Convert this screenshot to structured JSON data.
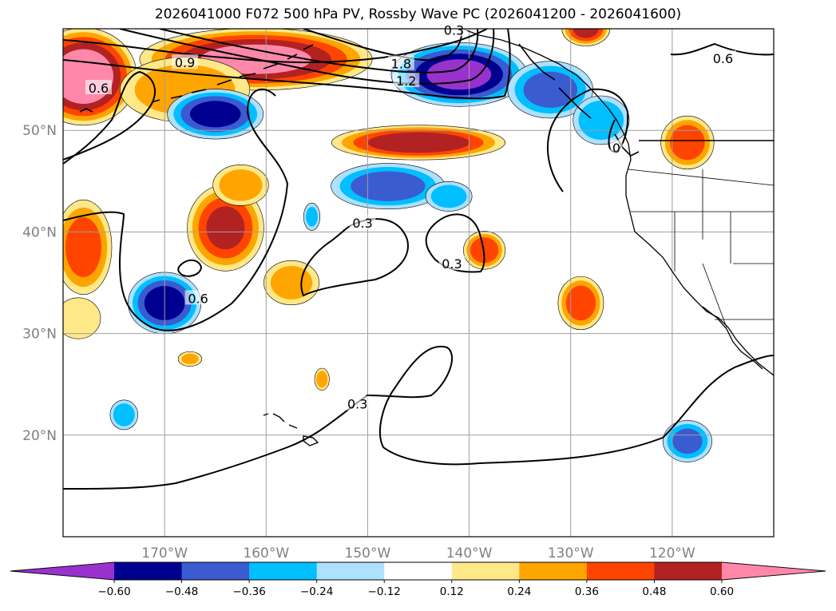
{
  "title": "2026041000 F072 500 hPa PV, Rossby Wave PC (2026041200 - 2026041600)",
  "map": {
    "lon_range": [
      -180,
      -110
    ],
    "lat_range": [
      10,
      60
    ],
    "lon_ticks": [
      {
        "value": -170,
        "label": "170°W"
      },
      {
        "value": -160,
        "label": "160°W"
      },
      {
        "value": -150,
        "label": "150°W"
      },
      {
        "value": -140,
        "label": "140°W"
      },
      {
        "value": -130,
        "label": "130°W"
      },
      {
        "value": -120,
        "label": "120°W"
      }
    ],
    "lat_ticks": [
      {
        "value": 20,
        "label": "20°N"
      },
      {
        "value": 30,
        "label": "30°N"
      },
      {
        "value": 40,
        "label": "40°N"
      },
      {
        "value": 50,
        "label": "50°N"
      }
    ],
    "gridlines": true
  },
  "contour_labels": [
    {
      "text": "0.9",
      "lon": -168,
      "lat": 56.6
    },
    {
      "text": "0.6",
      "lon": -176.5,
      "lat": 54.1
    },
    {
      "text": "1.8",
      "lon": -146.7,
      "lat": 56.5
    },
    {
      "text": "1.2",
      "lon": -146.2,
      "lat": 54.8
    },
    {
      "text": "0.3",
      "lon": -141.5,
      "lat": 59.8
    },
    {
      "text": "0.6",
      "lon": -115,
      "lat": 57
    },
    {
      "text": "0.3",
      "lon": -150.5,
      "lat": 40.8
    },
    {
      "text": "0.3",
      "lon": -141.7,
      "lat": 36.8
    },
    {
      "text": "0.6",
      "lon": -166.7,
      "lat": 33.4
    },
    {
      "text": "0.3",
      "lon": -151,
      "lat": 23
    },
    {
      "text": "0",
      "lon": -125.5,
      "lat": 48.2
    }
  ],
  "colorbar": {
    "levels": [
      -0.72,
      -0.6,
      -0.48,
      -0.36,
      -0.24,
      -0.12,
      0.12,
      0.24,
      0.36,
      0.48,
      0.6,
      0.72
    ],
    "colors": [
      "#9932cc",
      "#000090",
      "#3b5bd0",
      "#00bfff",
      "#aee0ff",
      "#ffffff",
      "#ffe888",
      "#ffa500",
      "#ff4400",
      "#b22222",
      "#ff88aa"
    ],
    "extend": "both",
    "tick_labels": [
      "−0.60",
      "−0.48",
      "−0.36",
      "−0.24",
      "−0.12",
      "0.12",
      "0.24",
      "0.36",
      "0.48",
      "0.60"
    ],
    "tick_values": [
      -0.6,
      -0.48,
      -0.36,
      -0.24,
      -0.12,
      0.12,
      0.24,
      0.36,
      0.48,
      0.6
    ]
  },
  "anomaly_features": [
    {
      "lon": -161,
      "lat": 57,
      "rx": 12,
      "ry": 3.2,
      "value": 0.62
    },
    {
      "lon": -178,
      "lat": 55.3,
      "rx": 5.5,
      "ry": 5,
      "value": 0.7
    },
    {
      "lon": -168,
      "lat": 54,
      "rx": 7,
      "ry": 3.5,
      "value": 0.3
    },
    {
      "lon": -165,
      "lat": 51.6,
      "rx": 5,
      "ry": 2.6,
      "value": -0.5
    },
    {
      "lon": -141,
      "lat": 55.5,
      "rx": 7,
      "ry": 3.3,
      "value": -0.62
    },
    {
      "lon": -132,
      "lat": 54,
      "rx": 4.5,
      "ry": 3,
      "value": -0.4
    },
    {
      "lon": -127,
      "lat": 51,
      "rx": 3,
      "ry": 2.6,
      "value": -0.34
    },
    {
      "lon": -145,
      "lat": 48.8,
      "rx": 9,
      "ry": 1.8,
      "value": 0.55
    },
    {
      "lon": -148,
      "lat": 44.5,
      "rx": 6,
      "ry": 2.4,
      "value": -0.42
    },
    {
      "lon": -142,
      "lat": 43.5,
      "rx": 2.5,
      "ry": 1.6,
      "value": -0.3
    },
    {
      "lon": -164,
      "lat": 40.4,
      "rx": 4,
      "ry": 4.5,
      "value": 0.48
    },
    {
      "lon": -162.5,
      "lat": 44.6,
      "rx": 3,
      "ry": 2.2,
      "value": 0.3
    },
    {
      "lon": -157.5,
      "lat": 35,
      "rx": 3,
      "ry": 2.4,
      "value": 0.28
    },
    {
      "lon": -178,
      "lat": 38.5,
      "rx": 3,
      "ry": 5,
      "value": 0.4
    },
    {
      "lon": -178.5,
      "lat": 31.5,
      "rx": 2.5,
      "ry": 2.3,
      "value": 0.2
    },
    {
      "lon": -170,
      "lat": 33,
      "rx": 3.8,
      "ry": 3.2,
      "value": -0.52
    },
    {
      "lon": -138.5,
      "lat": 38.2,
      "rx": 2.2,
      "ry": 2,
      "value": 0.44
    },
    {
      "lon": -129,
      "lat": 33,
      "rx": 2.4,
      "ry": 2.8,
      "value": 0.42
    },
    {
      "lon": -118.5,
      "lat": 48.8,
      "rx": 2.8,
      "ry": 2.8,
      "value": 0.42
    },
    {
      "lon": -118.5,
      "lat": 19.4,
      "rx": 2.6,
      "ry": 2.2,
      "value": -0.38
    },
    {
      "lon": -155.5,
      "lat": 41.5,
      "rx": 0.9,
      "ry": 1.5,
      "value": -0.25
    },
    {
      "lon": -154.5,
      "lat": 25.5,
      "rx": 0.8,
      "ry": 1.2,
      "value": 0.28
    },
    {
      "lon": -174,
      "lat": 22,
      "rx": 1.5,
      "ry": 1.6,
      "value": -0.3
    },
    {
      "lon": -167.5,
      "lat": 27.5,
      "rx": 1.3,
      "ry": 0.8,
      "value": 0.25
    },
    {
      "lon": -128.5,
      "lat": 60,
      "rx": 2.5,
      "ry": 1.8,
      "value": 0.5
    }
  ]
}
